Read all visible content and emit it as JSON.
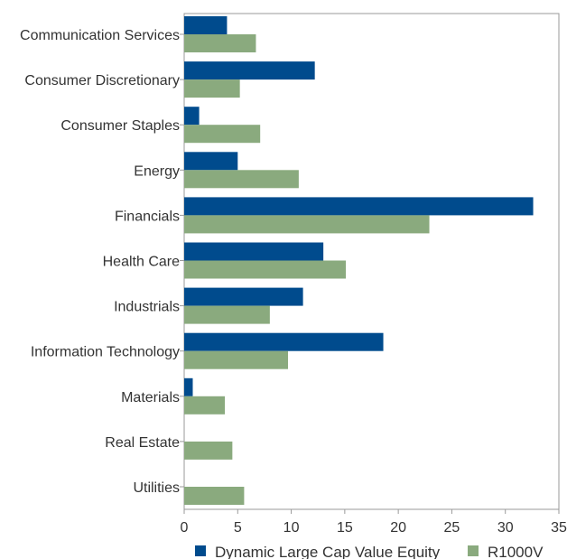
{
  "chart_data": {
    "type": "bar",
    "orientation": "horizontal",
    "categories": [
      "Communication Services",
      "Consumer Discretionary",
      "Consumer Staples",
      "Energy",
      "Financials",
      "Health Care",
      "Industrials",
      "Information Technology",
      "Materials",
      "Real Estate",
      "Utilities"
    ],
    "series": [
      {
        "name": "Dynamic Large Cap Value Equity",
        "color": "#004b8d",
        "values": [
          4.0,
          12.2,
          1.4,
          5.0,
          32.6,
          13.0,
          11.1,
          18.6,
          0.8,
          0.0,
          0.0
        ]
      },
      {
        "name": "R1000V",
        "color": "#8aaa7e",
        "values": [
          6.7,
          5.2,
          7.1,
          10.7,
          22.9,
          15.1,
          8.0,
          9.7,
          3.8,
          4.5,
          5.6
        ]
      }
    ],
    "xlim": [
      0,
      35
    ],
    "xticks": [
      "0",
      "5",
      "10",
      "15",
      "20",
      "25",
      "30",
      "35"
    ],
    "grid": false,
    "legend": "bottom"
  }
}
